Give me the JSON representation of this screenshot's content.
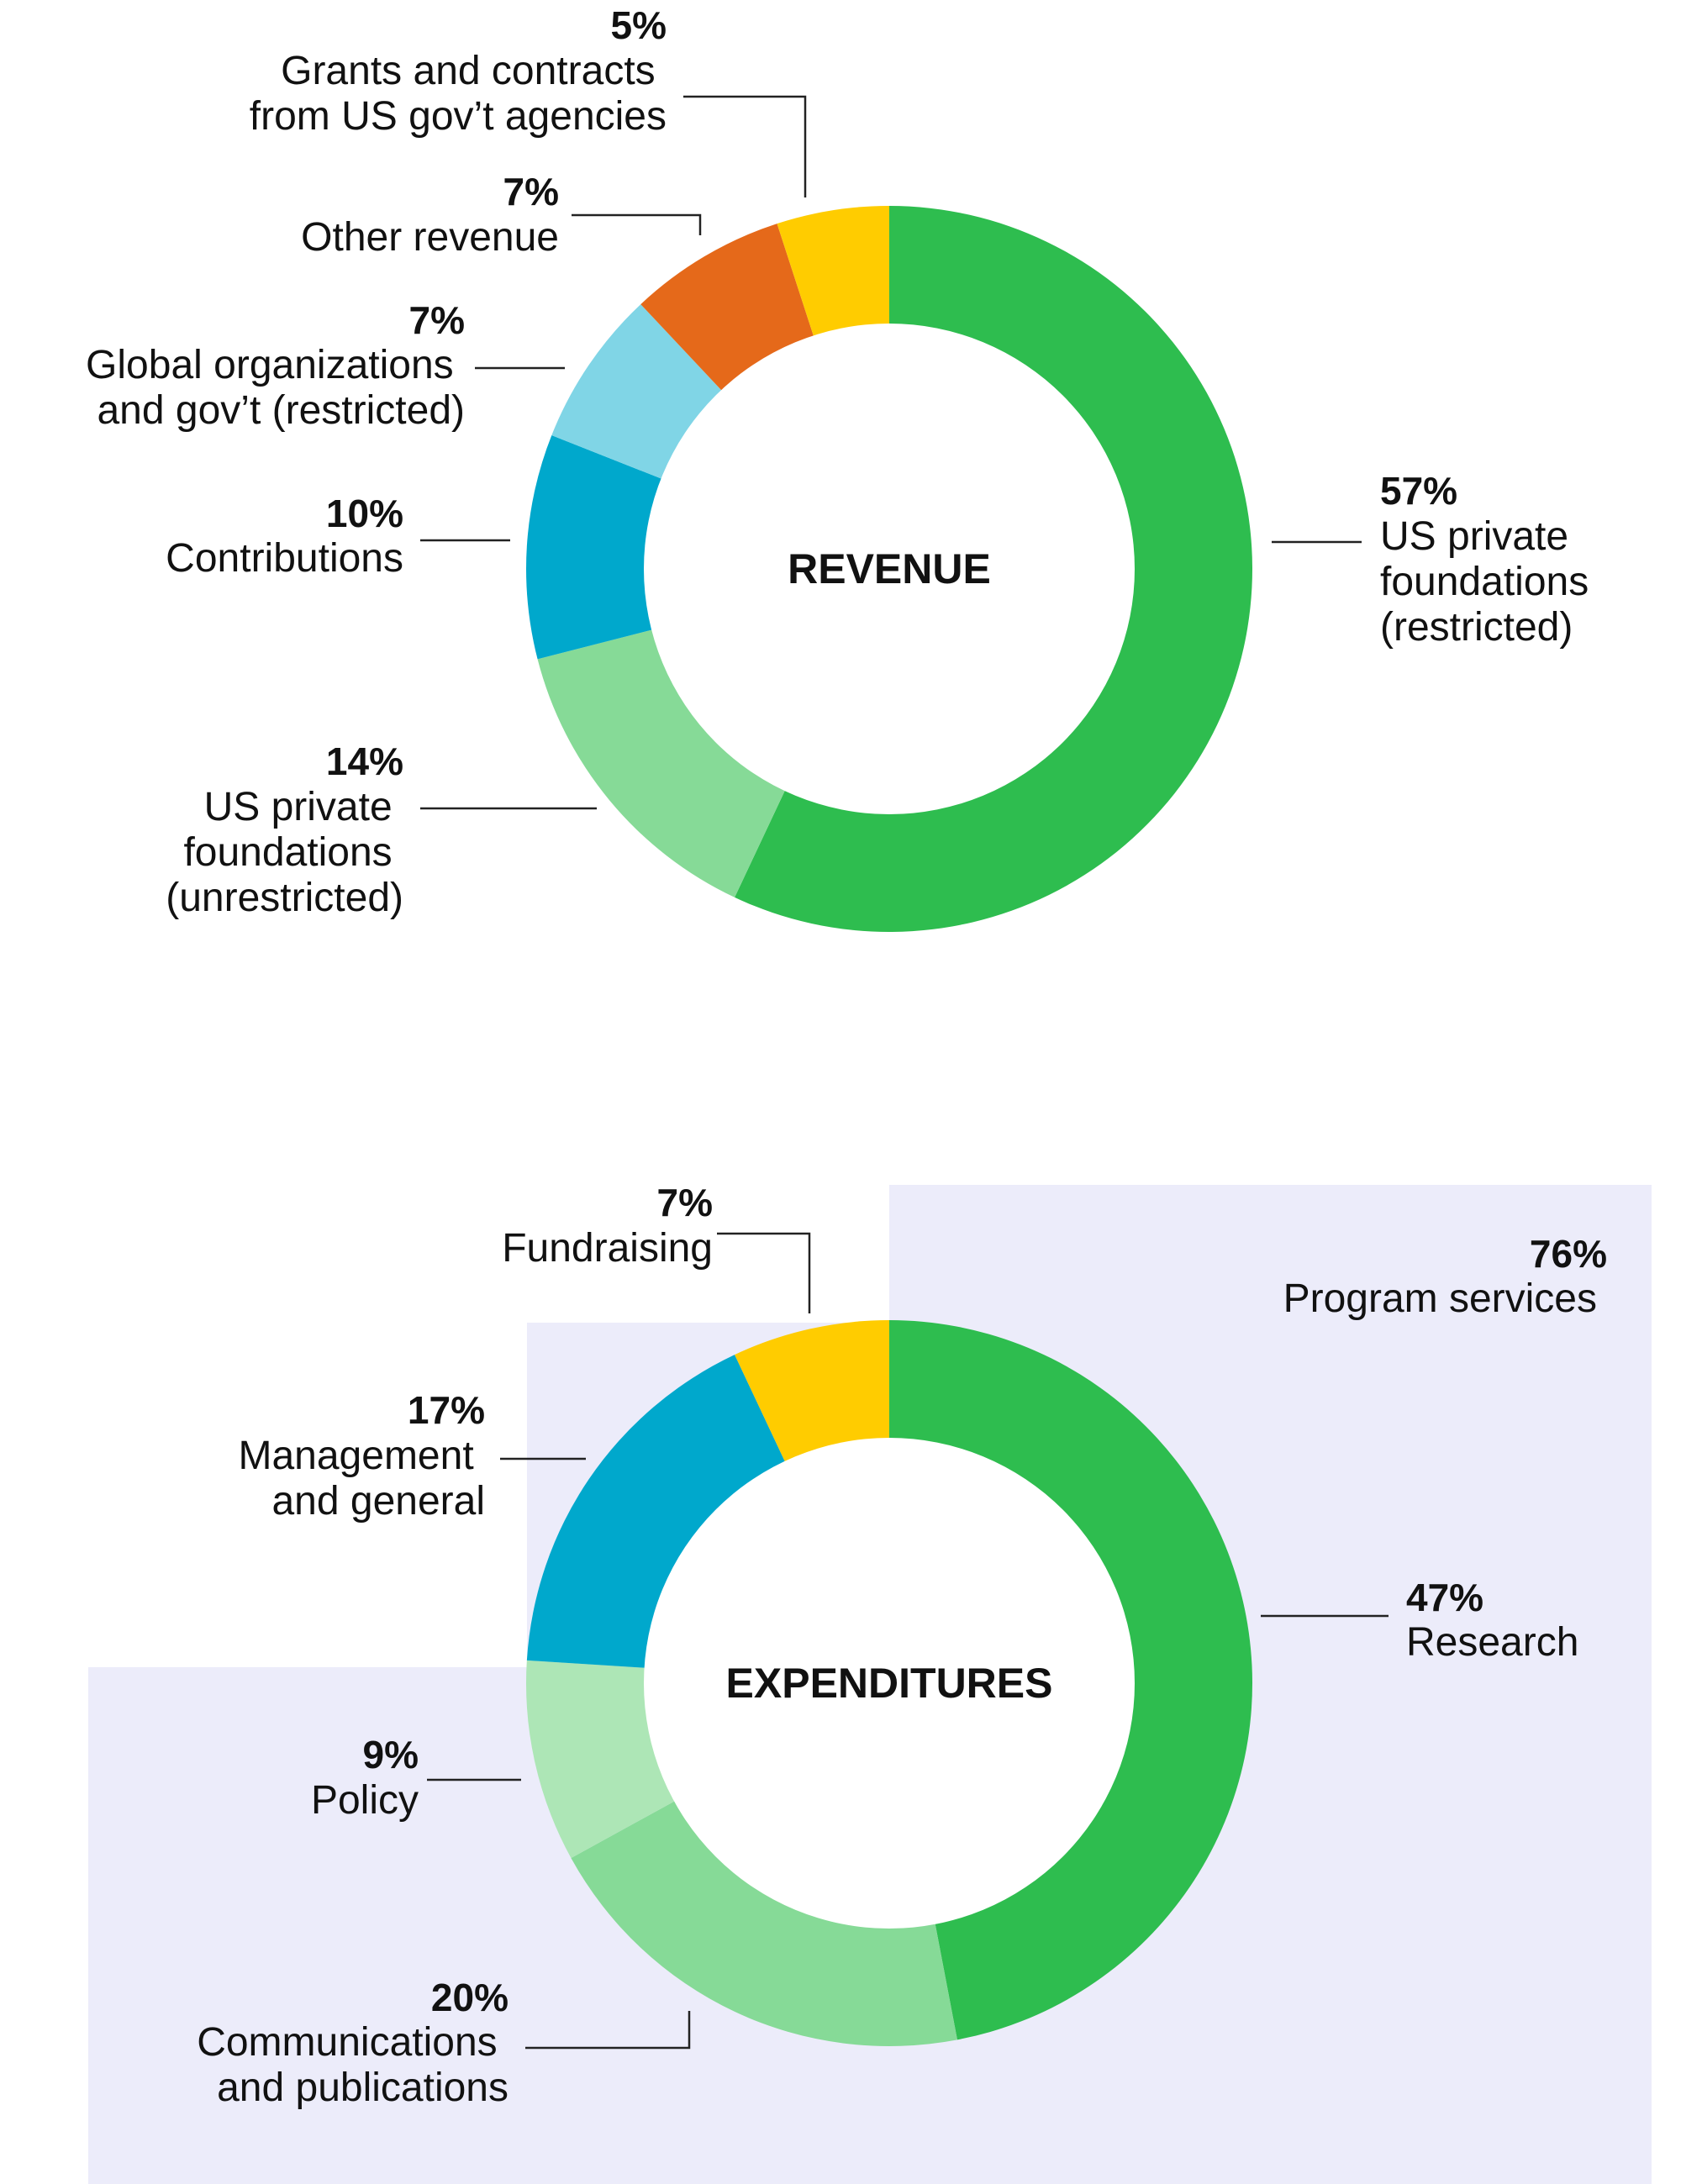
{
  "chart_data": [
    {
      "type": "pie",
      "title": "REVENUE",
      "slices": [
        {
          "pct": "57%",
          "value": 57,
          "label": [
            "US private",
            "foundations",
            "(restricted)"
          ],
          "color": "#2ebd4f"
        },
        {
          "pct": "14%",
          "value": 14,
          "label": [
            "US private",
            "foundations",
            "(unrestricted)"
          ],
          "color": "#86da97"
        },
        {
          "pct": "10%",
          "value": 10,
          "label": [
            "Contributions"
          ],
          "color": "#00a8cc"
        },
        {
          "pct": "7%",
          "value": 7,
          "label": [
            "Global organizations",
            "and gov’t (restricted)"
          ],
          "color": "#80d5e6"
        },
        {
          "pct": "7%",
          "value": 7,
          "label": [
            "Other revenue"
          ],
          "color": "#e5691a"
        },
        {
          "pct": "5%",
          "value": 5,
          "label": [
            "Grants and contracts",
            "from US gov’t agencies"
          ],
          "color": "#ffcc00"
        }
      ]
    },
    {
      "type": "pie",
      "title": "EXPENDITURES",
      "slices": [
        {
          "pct": "47%",
          "value": 47,
          "label": [
            "Research"
          ],
          "color": "#2ebd4f"
        },
        {
          "pct": "20%",
          "value": 20,
          "label": [
            "Communications",
            "and publications"
          ],
          "color": "#86da97"
        },
        {
          "pct": "9%",
          "value": 9,
          "label": [
            "Policy"
          ],
          "color": "#ade6b6"
        },
        {
          "pct": "17%",
          "value": 17,
          "label": [
            "Management",
            "and general"
          ],
          "color": "#00a8cc"
        },
        {
          "pct": "7%",
          "value": 7,
          "label": [
            "Fundraising"
          ],
          "color": "#ffcc00"
        }
      ],
      "group": {
        "pct": "76%",
        "label": "Program services",
        "color": "#ececfa"
      }
    }
  ]
}
